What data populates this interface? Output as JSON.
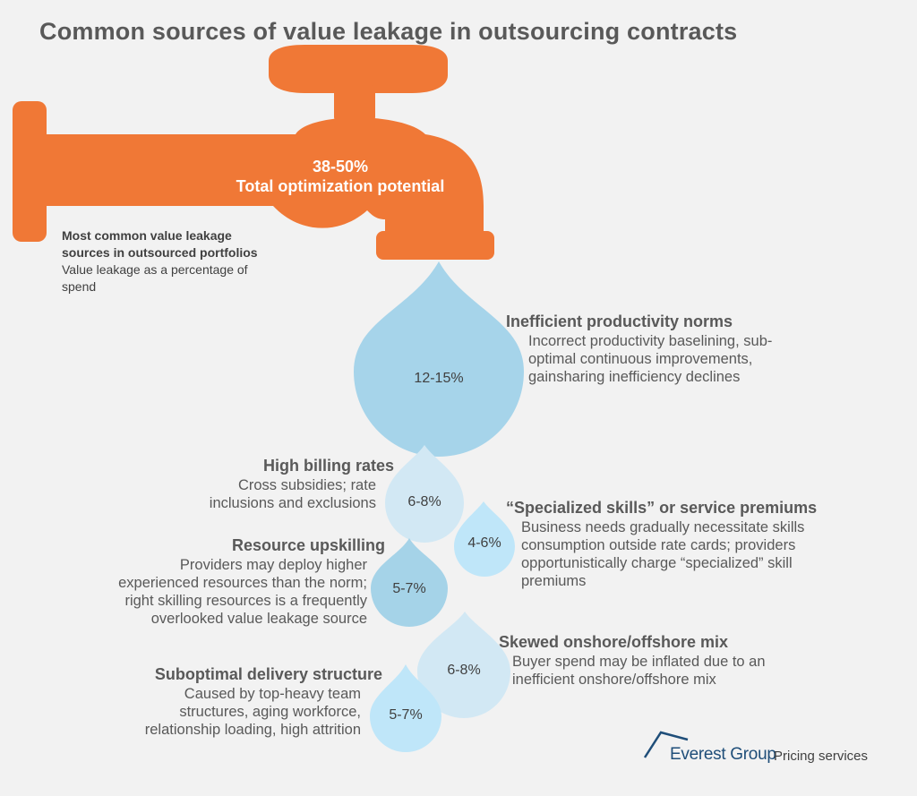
{
  "title": "Common sources of value leakage in outsourcing contracts",
  "faucet": {
    "total_pct": "38-50%",
    "total_label": "Total optimization potential"
  },
  "note": {
    "line1": "Most common value leakage",
    "line2": "sources in outsourced portfolios",
    "line3": "Value leakage as a percentage of",
    "line4": "spend"
  },
  "drops": [
    {
      "pct": "12-15%",
      "heading": "Inefficient productivity norms",
      "lines": [
        "Incorrect productivity baselining, sub-",
        "optimal continuous improvements,",
        "gainsharing inefficiency declines"
      ]
    },
    {
      "pct": "6-8%",
      "heading": "High billing rates",
      "lines": [
        "Cross subsidies; rate",
        "inclusions and exclusions"
      ]
    },
    {
      "pct": "4-6%",
      "heading": "“Specialized skills” or service premiums",
      "lines": [
        "Business needs gradually necessitate skills",
        "consumption outside rate cards; providers",
        "opportunistically charge  “specialized” skill",
        "premiums"
      ]
    },
    {
      "pct": "5-7%",
      "heading": "Resource upskilling",
      "lines": [
        "Providers may deploy higher",
        "experienced resources than the norm;",
        "right skilling resources is a frequently",
        "overlooked value leakage source"
      ]
    },
    {
      "pct": "6-8%",
      "heading": "Skewed onshore/offshore mix",
      "lines": [
        "Buyer spend may be inflated due to an",
        "inefficient onshore/offshore mix"
      ]
    },
    {
      "pct": "5-7%",
      "heading": "Suboptimal delivery structure",
      "lines": [
        "Caused by top-heavy team",
        "structures, aging workforce,",
        "relationship loading, high attrition"
      ]
    }
  ],
  "logo": {
    "brand": "Everest Group",
    "suffix": "Pricing services"
  },
  "colors": {
    "faucet": "#f07836",
    "background": "#f2f2f2",
    "drop_large": "#a6d4ea",
    "drop_pale": "#d2e8f4",
    "drop_light": "#bfe6f9",
    "drop_mid": "#a5d3e8"
  }
}
